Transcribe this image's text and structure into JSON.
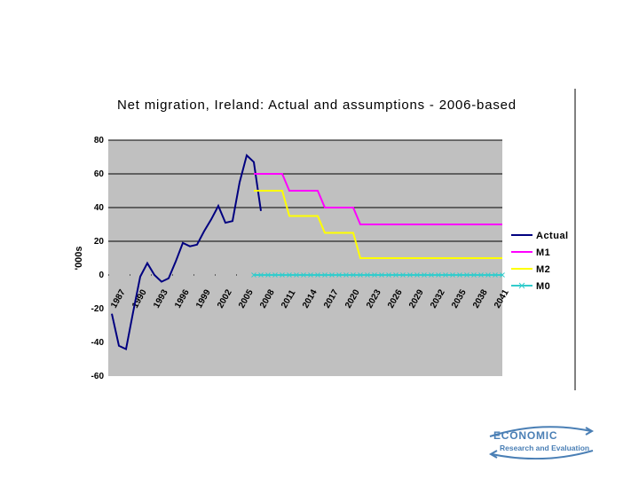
{
  "chart_data": {
    "type": "line",
    "title": "Net migration, Ireland: Actual and assumptions - 2006-based",
    "ylabel": "'000s",
    "xlabel": "",
    "ylim": [
      -60,
      80
    ],
    "yticks": [
      80,
      60,
      40,
      20,
      0,
      -20,
      -40,
      -60
    ],
    "xlim": [
      1986.5,
      2042
    ],
    "xticks": [
      "1987",
      "1990",
      "1993",
      "1996",
      "1999",
      "2002",
      "2005",
      "2008",
      "2011",
      "2014",
      "2017",
      "2020",
      "2023",
      "2026",
      "2029",
      "2032",
      "2035",
      "2038",
      "2041"
    ],
    "gridlines": [
      80,
      60,
      40,
      20
    ],
    "series": [
      {
        "name": "Actual",
        "color": "#000080",
        "x": [
          1987,
          1988,
          1989,
          1990,
          1991,
          1992,
          1993,
          1994,
          1995,
          1996,
          1997,
          1998,
          1999,
          2000,
          2001,
          2002,
          2003,
          2004,
          2005,
          2006,
          2007,
          2008
        ],
        "y": [
          -23,
          -42,
          -44,
          -22,
          -1,
          7,
          0,
          -4,
          -2,
          8,
          19,
          17,
          18,
          26,
          33,
          41,
          31,
          32,
          55,
          71,
          67,
          38
        ]
      },
      {
        "name": "M1",
        "color": "#ff00ff",
        "x": [
          2007,
          2011,
          2012,
          2016,
          2017,
          2021,
          2022,
          2042
        ],
        "y": [
          60,
          60,
          50,
          50,
          40,
          40,
          30,
          30
        ]
      },
      {
        "name": "M2",
        "color": "#ffff00",
        "x": [
          2007,
          2011,
          2012,
          2016,
          2017,
          2021,
          2022,
          2042
        ],
        "y": [
          50,
          50,
          35,
          35,
          25,
          25,
          10,
          10
        ]
      },
      {
        "name": "M0",
        "color": "#33cccc",
        "x": [
          2007,
          2008,
          2009,
          2010,
          2011,
          2012,
          2013,
          2014,
          2015,
          2016,
          2017,
          2018,
          2019,
          2020,
          2021,
          2022,
          2023,
          2024,
          2025,
          2026,
          2027,
          2028,
          2029,
          2030,
          2031,
          2032,
          2033,
          2034,
          2035,
          2036,
          2037,
          2038,
          2039,
          2040,
          2041,
          2042
        ],
        "y": [
          0,
          0,
          0,
          0,
          0,
          0,
          0,
          0,
          0,
          0,
          0,
          0,
          0,
          0,
          0,
          0,
          0,
          0,
          0,
          0,
          0,
          0,
          0,
          0,
          0,
          0,
          0,
          0,
          0,
          0,
          0,
          0,
          0,
          0,
          0,
          0
        ]
      }
    ]
  },
  "logo": {
    "title": "ECONOMIC",
    "subtitle": "Research and Evaluation"
  }
}
